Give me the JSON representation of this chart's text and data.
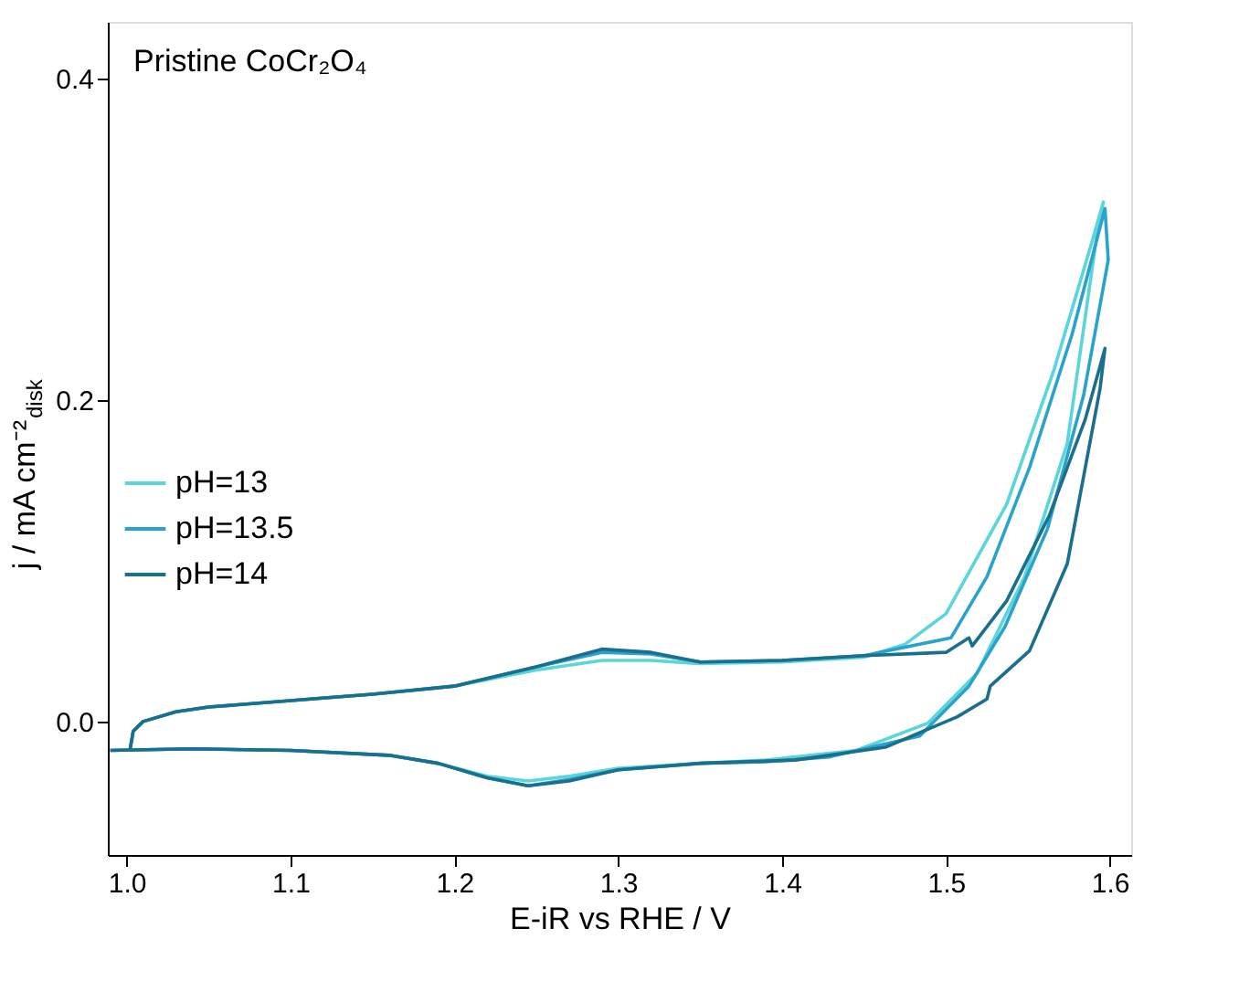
{
  "chart_data": {
    "type": "line",
    "xlabel": "E-iR vs RHE / V",
    "ylabel": "j / mA cm⁻²$_{disk}$",
    "annotations": [
      "Pristine CoCr₂O₄"
    ],
    "xlim": [
      0.9885,
      1.613
    ],
    "ylim": [
      -0.083,
      0.435
    ],
    "xticks": [
      {
        "value": 1,
        "label": "1.0"
      },
      1.1,
      1.2,
      1.3,
      1.4,
      1.5,
      1.6
    ],
    "yticks": [
      {
        "value": 0,
        "label": "0.0"
      },
      0.2,
      0.4
    ],
    "grid": false,
    "legend": "left",
    "marker": "none",
    "line_style": "solid",
    "series": [
      {
        "name": "pH=13",
        "color": "#5ad5dc",
        "x": [
          1.002,
          1.004,
          1.01,
          1.03,
          1.05,
          1.1,
          1.15,
          1.2,
          1.25,
          1.29,
          1.32,
          1.35,
          1.4,
          1.45,
          1.475,
          1.5,
          1.537,
          1.566,
          1.589,
          1.596,
          1.593,
          1.574,
          1.548,
          1.519,
          1.489,
          1.445,
          1.39,
          1.35,
          1.3,
          1.27,
          1.245,
          1.22,
          1.19,
          1.16,
          1.1,
          1.04,
          0.99
        ],
        "values": [
          -0.018,
          -0.006,
          0.0,
          0.006,
          0.009,
          0.013,
          0.017,
          0.022,
          0.032,
          0.038,
          0.038,
          0.036,
          0.037,
          0.04,
          0.048,
          0.067,
          0.135,
          0.219,
          0.298,
          0.323,
          0.309,
          0.173,
          0.09,
          0.03,
          -0.001,
          -0.018,
          -0.024,
          -0.026,
          -0.029,
          -0.034,
          -0.037,
          -0.034,
          -0.026,
          -0.021,
          -0.018,
          -0.017,
          -0.018
        ]
      },
      {
        "name": "pH=13.5",
        "color": "#2aa3cc",
        "x": [
          1.002,
          1.004,
          1.01,
          1.03,
          1.05,
          1.1,
          1.15,
          1.2,
          1.25,
          1.29,
          1.32,
          1.35,
          1.4,
          1.45,
          1.503,
          1.525,
          1.551,
          1.577,
          1.597,
          1.599,
          1.584,
          1.562,
          1.536,
          1.514,
          1.484,
          1.429,
          1.39,
          1.35,
          1.3,
          1.27,
          1.245,
          1.22,
          1.19,
          1.16,
          1.1,
          1.04,
          0.99
        ],
        "values": [
          -0.018,
          -0.006,
          0.0,
          0.006,
          0.009,
          0.013,
          0.017,
          0.022,
          0.034,
          0.043,
          0.042,
          0.037,
          0.038,
          0.041,
          0.052,
          0.09,
          0.158,
          0.241,
          0.319,
          0.287,
          0.203,
          0.12,
          0.059,
          0.022,
          -0.009,
          -0.022,
          -0.025,
          -0.026,
          -0.03,
          -0.036,
          -0.04,
          -0.035,
          -0.026,
          -0.021,
          -0.018,
          -0.017,
          -0.018
        ]
      },
      {
        "name": "pH=14",
        "color": "#1a6e8e",
        "x": [
          1.002,
          1.004,
          1.01,
          1.03,
          1.05,
          1.1,
          1.15,
          1.2,
          1.25,
          1.29,
          1.32,
          1.35,
          1.4,
          1.45,
          1.5,
          1.514,
          1.516,
          1.537,
          1.563,
          1.585,
          1.597,
          1.594,
          1.574,
          1.551,
          1.527,
          1.525,
          1.507,
          1.463,
          1.408,
          1.35,
          1.3,
          1.27,
          1.245,
          1.22,
          1.19,
          1.16,
          1.1,
          1.04,
          0.99
        ],
        "values": [
          -0.018,
          -0.006,
          0.0,
          0.006,
          0.009,
          0.013,
          0.017,
          0.022,
          0.034,
          0.045,
          0.043,
          0.037,
          0.038,
          0.041,
          0.043,
          0.052,
          0.047,
          0.075,
          0.128,
          0.188,
          0.232,
          0.207,
          0.098,
          0.044,
          0.022,
          0.014,
          0.003,
          -0.016,
          -0.024,
          -0.026,
          -0.03,
          -0.037,
          -0.04,
          -0.035,
          -0.026,
          -0.021,
          -0.018,
          -0.017,
          -0.018
        ]
      }
    ]
  }
}
